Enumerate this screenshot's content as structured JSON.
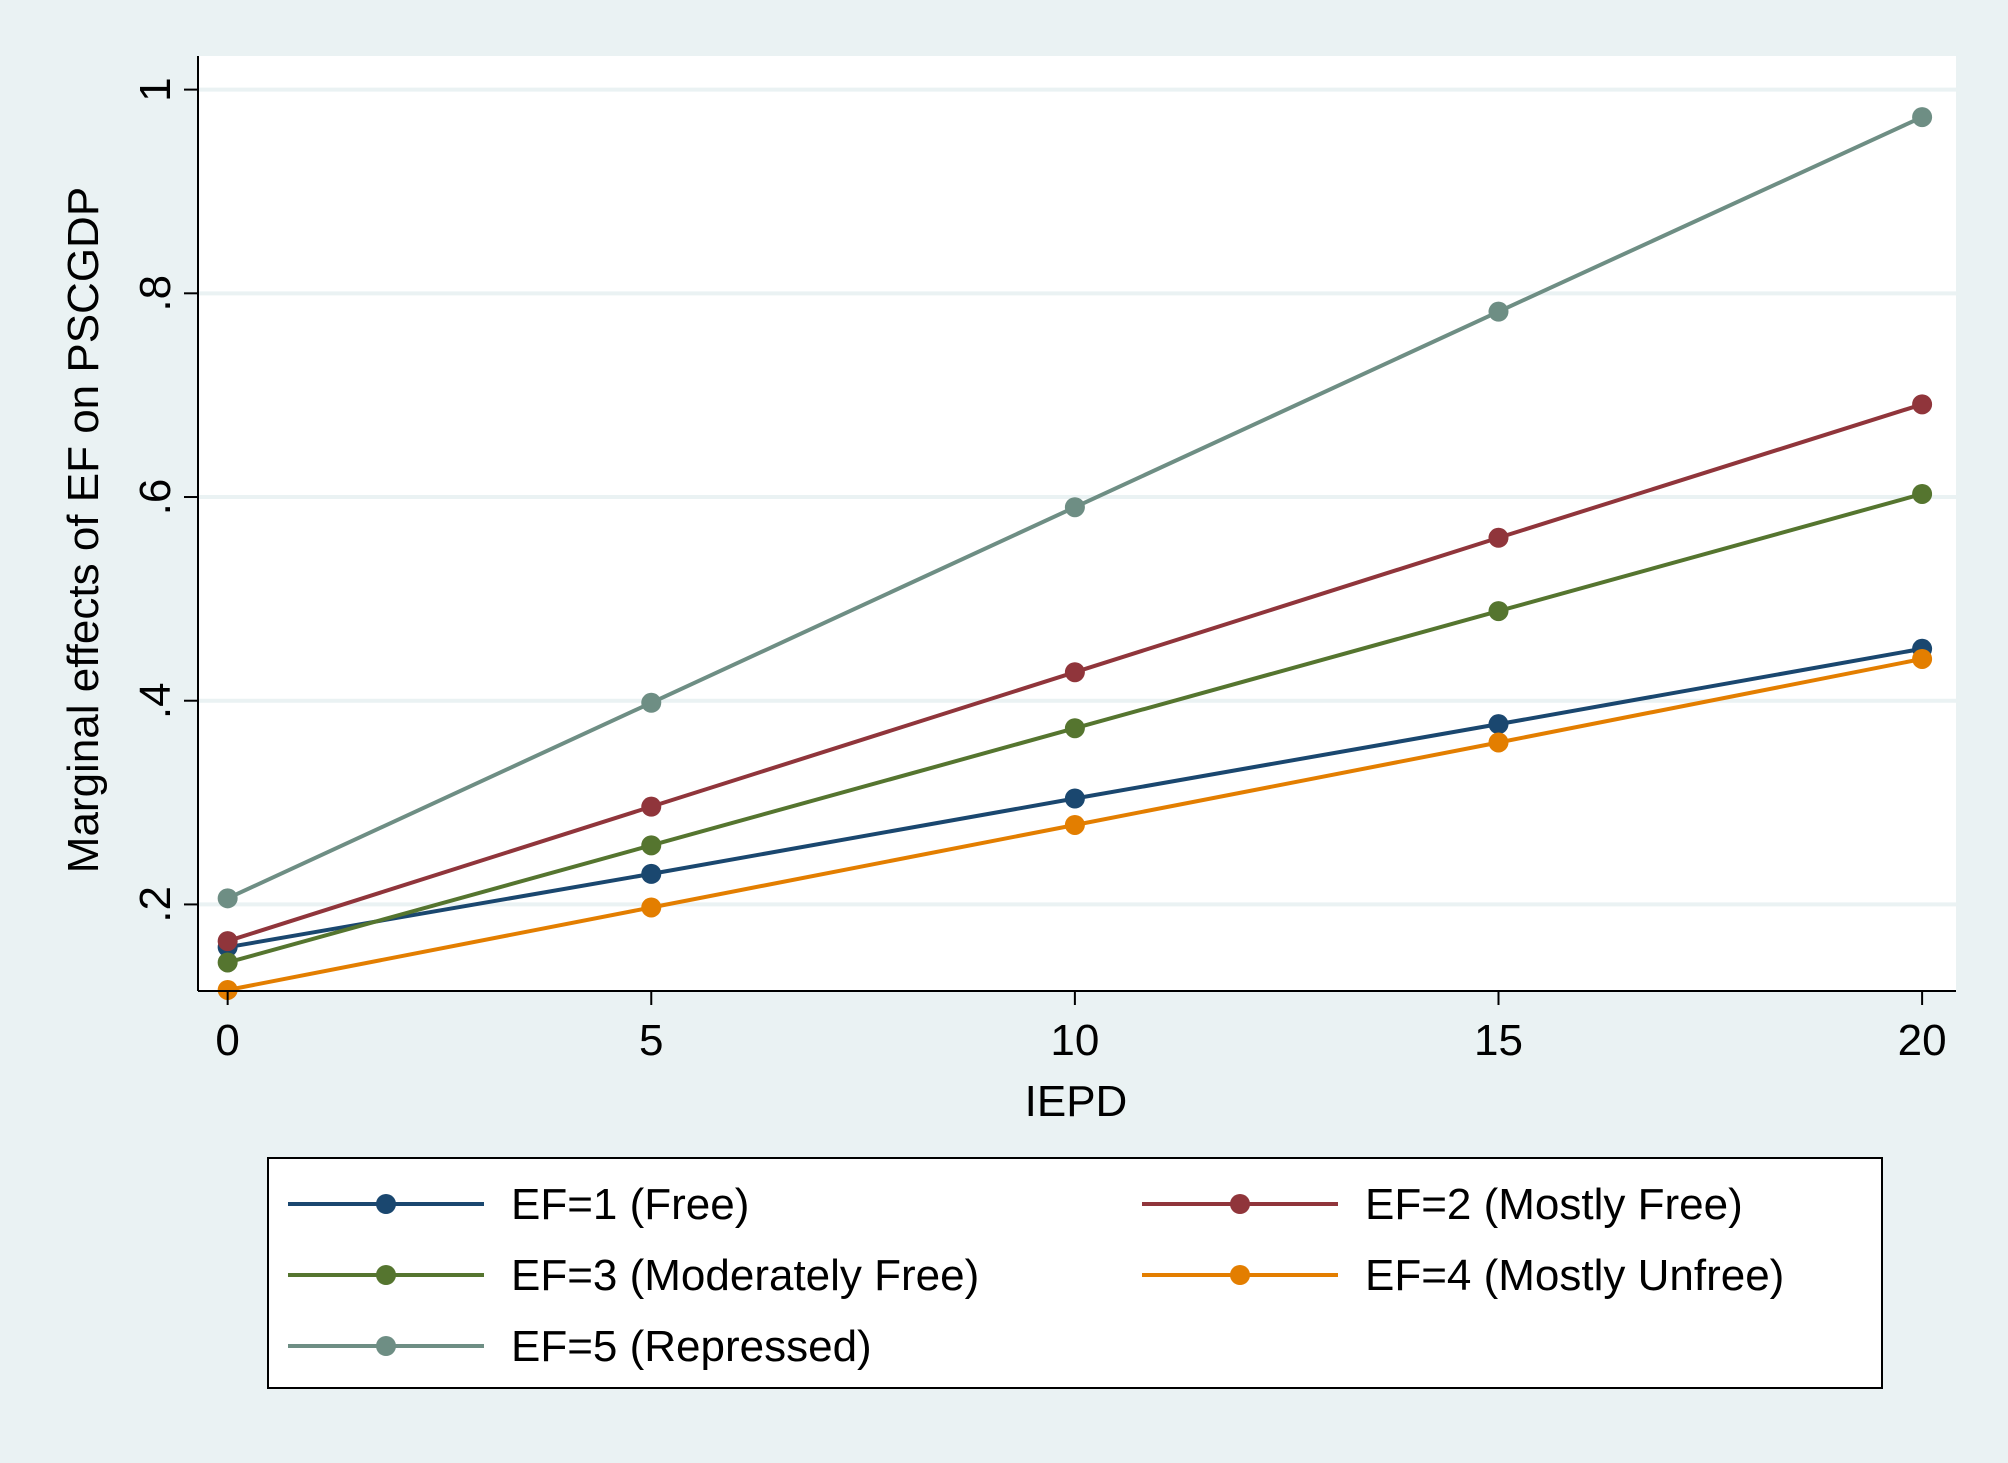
{
  "chart_data": {
    "type": "line",
    "title": "",
    "xlabel": "IEPD",
    "ylabel": "Marginal effects of EF on PSCGDP",
    "x": [
      0,
      5,
      10,
      15,
      20
    ],
    "x_ticks": [
      0,
      5,
      10,
      15,
      20
    ],
    "x_tick_labels": [
      "0",
      "5",
      "10",
      "15",
      "20"
    ],
    "y_ticks": [
      0.2,
      0.4,
      0.6,
      0.8,
      1.0
    ],
    "y_tick_labels": [
      ".2",
      ".4",
      ".6",
      ".8",
      "1"
    ],
    "xlim": [
      -0.35,
      20.4
    ],
    "ylim": [
      0.115,
      1.033
    ],
    "grid": true,
    "legend_position": "bottom",
    "series": [
      {
        "name": "EF=1 (Free)",
        "color": "#1a476f",
        "values": [
          0.158,
          0.23,
          0.304,
          0.377,
          0.451
        ]
      },
      {
        "name": "EF=2 (Mostly Free)",
        "color": "#90353b",
        "values": [
          0.164,
          0.296,
          0.428,
          0.56,
          0.691
        ]
      },
      {
        "name": "EF=3 (Moderately Free)",
        "color": "#55752f",
        "values": [
          0.143,
          0.258,
          0.373,
          0.488,
          0.603
        ]
      },
      {
        "name": "EF=4 (Mostly Unfree)",
        "color": "#e37e00",
        "values": [
          0.116,
          0.197,
          0.278,
          0.359,
          0.441
        ]
      },
      {
        "name": "EF=5 (Repressed)",
        "color": "#6e8e84",
        "values": [
          0.206,
          0.398,
          0.59,
          0.782,
          0.973
        ]
      }
    ]
  }
}
